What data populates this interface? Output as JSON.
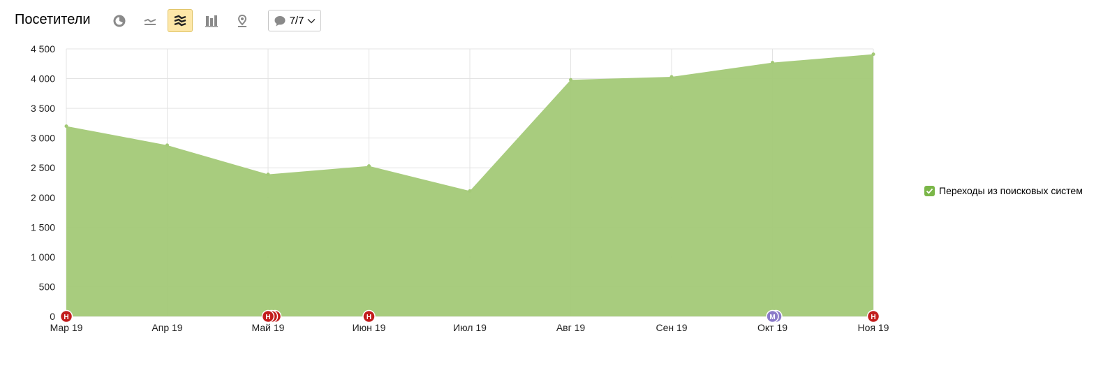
{
  "header": {
    "title": "Посетители",
    "tools": [
      {
        "name": "pie-chart-icon",
        "active": false
      },
      {
        "name": "line-chart-icon",
        "active": false
      },
      {
        "name": "area-chart-icon",
        "active": true
      },
      {
        "name": "bar-chart-icon",
        "active": false
      },
      {
        "name": "map-icon",
        "active": false
      }
    ],
    "notes_label": "7/7"
  },
  "colors": {
    "area": "#a3c977",
    "grid": "#e3e3e3",
    "note_red": "#c21d1d",
    "note_purple": "#8c7bc9",
    "active_tool_bg": "#fde7a8",
    "checkbox": "#7ab648"
  },
  "chart_data": {
    "type": "area",
    "categories": [
      "Мар 19",
      "Апр 19",
      "Май 19",
      "Июн 19",
      "Июл 19",
      "Авг 19",
      "Сен 19",
      "Окт 19",
      "Ноя 19"
    ],
    "series": [
      {
        "name": "Переходы из поисковых систем",
        "values": [
          3200,
          2880,
          2390,
          2530,
          2110,
          3980,
          4030,
          4270,
          4410
        ]
      }
    ],
    "yticks": [
      0,
      500,
      1000,
      1500,
      2000,
      2500,
      3000,
      3500,
      4000,
      4500
    ],
    "ytick_labels": [
      "0",
      "500",
      "1 000",
      "1 500",
      "2 000",
      "2 500",
      "3 000",
      "3 500",
      "4 000",
      "4 500"
    ],
    "ylim": [
      0,
      4500
    ],
    "grid": true,
    "legend_position": "right",
    "notes": [
      {
        "category_index": 0,
        "letter": "Н",
        "color": "red",
        "stack": 1
      },
      {
        "category_index": 2,
        "letter": "Н",
        "color": "red",
        "stack": 3
      },
      {
        "category_index": 3,
        "letter": "Н",
        "color": "red",
        "stack": 1
      },
      {
        "category_index": 7,
        "letter": "М",
        "color": "purple",
        "stack": 2
      },
      {
        "category_index": 8,
        "letter": "Н",
        "color": "red",
        "stack": 1
      }
    ]
  },
  "legend": {
    "label": "Переходы из поисковых систем",
    "checked": true
  }
}
